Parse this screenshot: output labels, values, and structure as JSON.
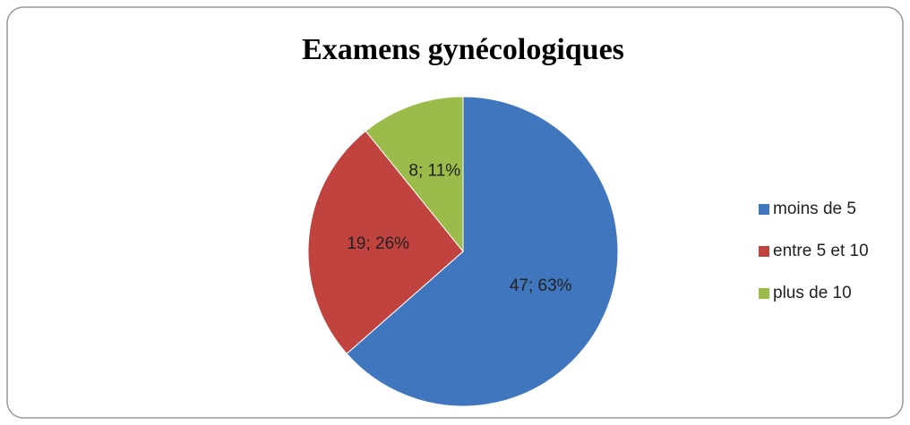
{
  "chart_data": {
    "type": "pie",
    "title": "Examens gynécologiques",
    "categories": [
      "moins de 5",
      "entre 5 et 10",
      "plus de 10"
    ],
    "values": [
      47,
      19,
      8
    ],
    "value_labels": [
      "47; 63%",
      "19; 26%",
      "8; 11%"
    ],
    "colors": [
      "#4076bd",
      "#c0433f",
      "#9bbb4b"
    ],
    "legend": "right"
  }
}
